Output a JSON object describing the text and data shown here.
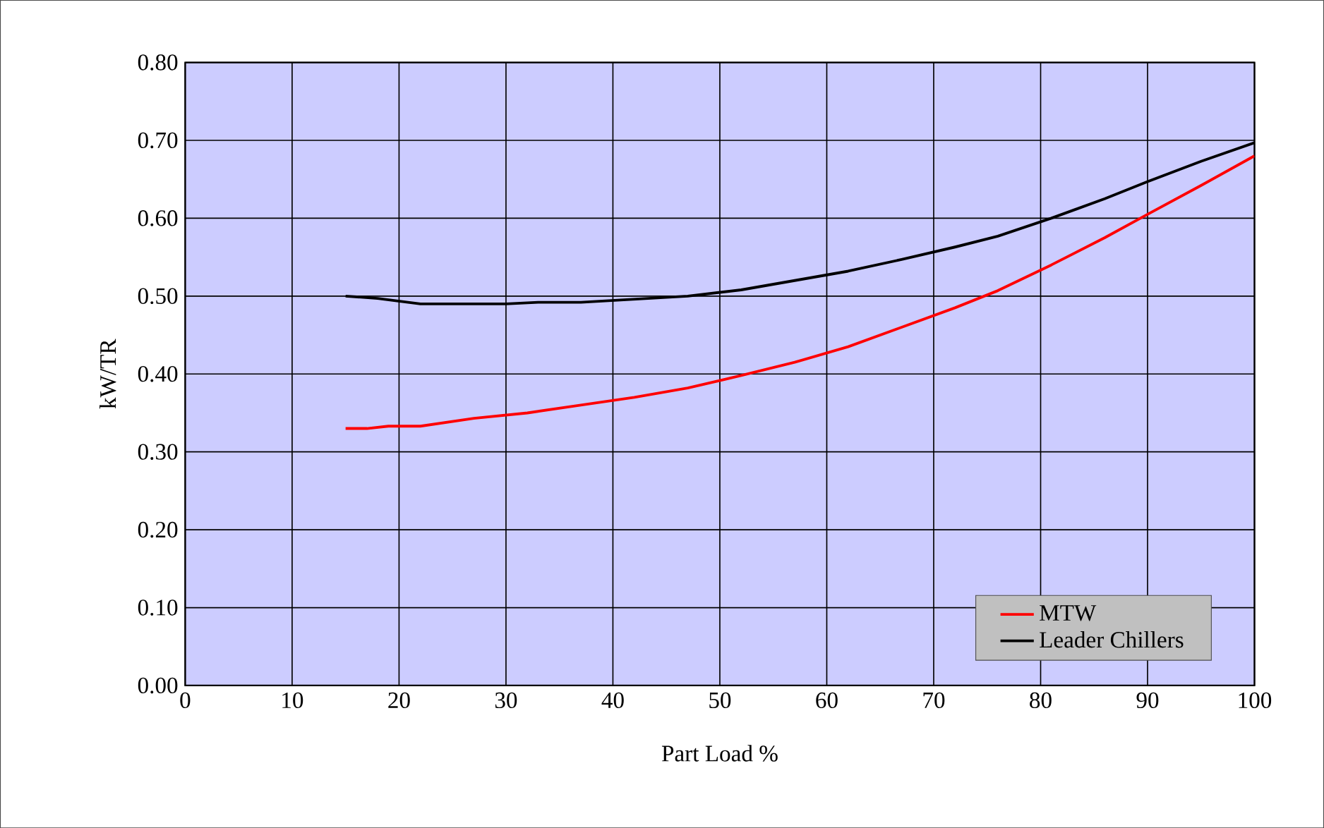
{
  "chart_data": {
    "type": "line",
    "xlabel": "Part Load  %",
    "ylabel": "kW/TR",
    "xlim": [
      0,
      100
    ],
    "xticks": [
      0,
      10,
      20,
      30,
      40,
      50,
      60,
      70,
      80,
      90,
      100
    ],
    "ylim": [
      0,
      0.8
    ],
    "yticks": [
      {
        "value": 0,
        "label": "0.00"
      },
      {
        "value": 0.1,
        "label": "0.10"
      },
      {
        "value": 0.2,
        "label": "0.20"
      },
      {
        "value": 0.3,
        "label": "0.30"
      },
      {
        "value": 0.4,
        "label": "0.40"
      },
      {
        "value": 0.5,
        "label": "0.50"
      },
      {
        "value": 0.6,
        "label": "0.60"
      },
      {
        "value": 0.7,
        "label": "0.70"
      },
      {
        "value": 0.8,
        "label": "0.80"
      }
    ],
    "grid": true,
    "legend": "bottom right",
    "marker": "none",
    "line_style": "solid",
    "series": [
      {
        "name": "MTW",
        "color": "#ff0000",
        "x": [
          15,
          17,
          19,
          22,
          27,
          32,
          37,
          42,
          47,
          52,
          57,
          62,
          67,
          72,
          76,
          81,
          86,
          90,
          95,
          100
        ],
        "values": [
          0.33,
          0.33,
          0.333,
          0.333,
          0.343,
          0.35,
          0.36,
          0.37,
          0.382,
          0.398,
          0.415,
          0.435,
          0.46,
          0.485,
          0.507,
          0.54,
          0.575,
          0.605,
          0.642,
          0.68
        ]
      },
      {
        "name": "Leader Chillers",
        "color": "#000000",
        "x": [
          15,
          18,
          22,
          30,
          33,
          37,
          47,
          52,
          57,
          62,
          67,
          72,
          76,
          81,
          86,
          90,
          95,
          100
        ],
        "values": [
          0.5,
          0.497,
          0.49,
          0.49,
          0.492,
          0.492,
          0.5,
          0.508,
          0.52,
          0.532,
          0.547,
          0.563,
          0.577,
          0.6,
          0.625,
          0.647,
          0.673,
          0.697
        ]
      }
    ]
  }
}
